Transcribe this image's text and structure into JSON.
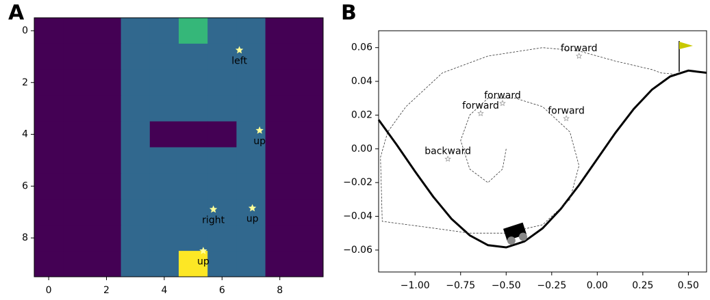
{
  "panel_labels": [
    "A",
    "B"
  ],
  "chart_data": [
    {
      "type": "heatmap",
      "xlim": [
        -0.5,
        9.5
      ],
      "ylim": [
        9.5,
        -0.5
      ],
      "xticks": [
        0,
        2,
        4,
        6,
        8
      ],
      "yticks": [
        0,
        2,
        4,
        6,
        8
      ],
      "colors": [
        "#440154",
        "#31688e",
        "#35b779",
        "#fde725"
      ],
      "z": [
        [
          0,
          0,
          0,
          1,
          1,
          2,
          1,
          1,
          0,
          0
        ],
        [
          0,
          0,
          0,
          1,
          1,
          1,
          1,
          1,
          0,
          0
        ],
        [
          0,
          0,
          0,
          1,
          1,
          1,
          1,
          1,
          0,
          0
        ],
        [
          0,
          0,
          0,
          1,
          1,
          1,
          1,
          1,
          0,
          0
        ],
        [
          0,
          0,
          0,
          1,
          0,
          0,
          0,
          1,
          0,
          0
        ],
        [
          0,
          0,
          0,
          1,
          1,
          1,
          1,
          1,
          0,
          0
        ],
        [
          0,
          0,
          0,
          1,
          1,
          1,
          1,
          1,
          0,
          0
        ],
        [
          0,
          0,
          0,
          1,
          1,
          1,
          1,
          1,
          0,
          0
        ],
        [
          0,
          0,
          0,
          1,
          1,
          1,
          1,
          1,
          0,
          0
        ],
        [
          0,
          0,
          0,
          1,
          1,
          3,
          1,
          1,
          0,
          0
        ]
      ],
      "annotations": [
        {
          "text": "left",
          "x": 6.6,
          "y": 0.75
        },
        {
          "text": "up",
          "x": 7.3,
          "y": 3.85
        },
        {
          "text": "right",
          "x": 5.7,
          "y": 6.9
        },
        {
          "text": "up",
          "x": 7.05,
          "y": 6.85
        },
        {
          "text": "up",
          "x": 5.35,
          "y": 8.5
        }
      ]
    },
    {
      "type": "line",
      "xlim": [
        -1.2,
        0.6
      ],
      "ylim": [
        -0.073,
        0.07
      ],
      "xticks": [
        {
          "value": -1,
          "label": "−1.00"
        },
        {
          "value": -0.75,
          "label": "−0.75"
        },
        {
          "value": -0.5,
          "label": "−0.50"
        },
        {
          "value": -0.25,
          "label": "−0.25"
        },
        {
          "value": 0,
          "label": "0.00"
        },
        {
          "value": 0.25,
          "label": "0.25"
        },
        {
          "value": 0.5,
          "label": "0.50"
        }
      ],
      "yticks": [
        {
          "value": -0.06,
          "label": "−0.06"
        },
        {
          "value": -0.04,
          "label": "−0.04"
        },
        {
          "value": -0.02,
          "label": "−0.02"
        },
        {
          "value": 0,
          "label": "0.00"
        },
        {
          "value": 0.02,
          "label": "0.02"
        },
        {
          "value": 0.04,
          "label": "0.04"
        },
        {
          "value": 0.06,
          "label": "0.06"
        }
      ],
      "series": [
        {
          "color": "#000000",
          "linestyle": "solid",
          "x": [
            -1.2,
            -1.1,
            -1.0,
            -0.9,
            -0.8,
            -0.7,
            -0.6,
            -0.5,
            -0.4,
            -0.3,
            -0.2,
            -0.1,
            0,
            0.1,
            0.2,
            0.3,
            0.4,
            0.5,
            0.6
          ],
          "values": [
            0.0172,
            0.0023,
            -0.0134,
            -0.0284,
            -0.0415,
            -0.0513,
            -0.0571,
            -0.0584,
            -0.0549,
            -0.0471,
            -0.0356,
            -0.0215,
            -0.006,
            0.0095,
            0.0236,
            0.0351,
            0.0429,
            0.0464,
            0.0451
          ]
        },
        {
          "color": "#333333",
          "linestyle": "dashed",
          "x": [
            -0.5,
            -0.52,
            -0.6,
            -0.7,
            -0.75,
            -0.7,
            -0.6,
            -0.45,
            -0.3,
            -0.15,
            -0.1,
            -0.15,
            -0.3,
            -0.5,
            -0.7,
            -0.9,
            -1.18,
            -1.19,
            -1.15,
            -1.05,
            -0.85,
            -0.6,
            -0.3,
            -0.1,
            0.1,
            0.3,
            0.35,
            0.45
          ],
          "values": [
            0.0,
            -0.012,
            -0.02,
            -0.012,
            0.005,
            0.02,
            0.03,
            0.03,
            0.025,
            0.01,
            -0.01,
            -0.03,
            -0.045,
            -0.05,
            -0.05,
            -0.047,
            -0.043,
            -0.005,
            0.01,
            0.025,
            0.045,
            0.055,
            0.06,
            0.058,
            0.052,
            0.047,
            0.045,
            0.044
          ]
        }
      ],
      "annotations": [
        {
          "text": "forward",
          "x": -0.1,
          "y": 0.055
        },
        {
          "text": "forward",
          "x": -0.52,
          "y": 0.027
        },
        {
          "text": "forward",
          "x": -0.64,
          "y": 0.021
        },
        {
          "text": "forward",
          "x": -0.17,
          "y": 0.018
        },
        {
          "text": "backward",
          "x": -0.82,
          "y": -0.006
        }
      ]
    }
  ]
}
